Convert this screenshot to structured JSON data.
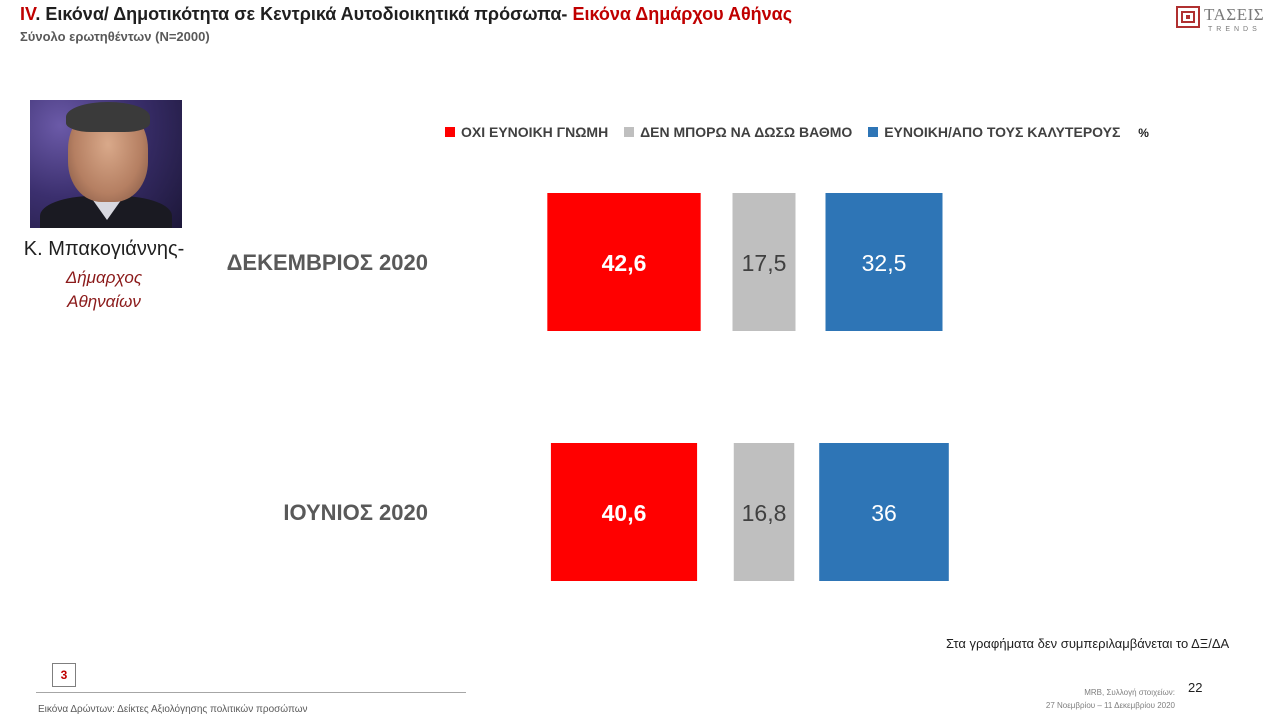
{
  "header": {
    "title_num": "IV",
    "title_main": ". Εικόνα/ Δημοτικότητα σε Κεντρικά Αυτοδιοικητικά πρόσωπα- ",
    "title_accent": "Εικόνα Δημάρχου Αθήνας",
    "subtitle": "Σύνολο ερωτηθέντων (N=2000)"
  },
  "logo": {
    "text": "ΤΑΣΕΙΣ",
    "sub": "TRENDS"
  },
  "person": {
    "name": "Κ. Μπακογιάννης-",
    "role_line1": "Δήμαρχος",
    "role_line2": "Αθηναίων"
  },
  "legend": {
    "unit": "%",
    "items": [
      {
        "label": "ΟΧΙ ΕΥΝΟΙΚΗ ΓΝΩΜΗ",
        "color": "#ff0000"
      },
      {
        "label": "ΔΕΝ ΜΠΟΡΩ ΝΑ ΔΩΣΩ ΒΑΘΜΟ",
        "color": "#bfbfbf"
      },
      {
        "label": "ΕΥΝΟΙΚΗ/ΑΠΟ ΤΟΥΣ ΚΑΛΥΤΕΡΟΥΣ",
        "color": "#2e75b6"
      }
    ]
  },
  "chart_data": {
    "type": "bar",
    "categories": [
      "ΔΕΚΕΜΒΡΙΟΣ 2020",
      "ΙΟΥΝΙΟΣ 2020"
    ],
    "series": [
      {
        "name": "ΟΧΙ ΕΥΝΟΙΚΗ ΓΝΩΜΗ",
        "color": "#ff0000",
        "values": [
          42.6,
          40.6
        ],
        "labels": [
          "42,6",
          "40,6"
        ]
      },
      {
        "name": "ΔΕΝ ΜΠΟΡΩ ΝΑ ΔΩΣΩ ΒΑΘΜΟ",
        "color": "#bfbfbf",
        "values": [
          17.5,
          16.8
        ],
        "labels": [
          "17,5",
          "16,8"
        ]
      },
      {
        "name": "ΕΥΝΟΙΚΗ/ΑΠΟ ΤΟΥΣ ΚΑΛΥΤΕΡΟΥΣ",
        "color": "#2e75b6",
        "values": [
          32.5,
          36
        ],
        "labels": [
          "32,5",
          "36"
        ]
      }
    ],
    "unit": "%",
    "legend_position": "top"
  },
  "footer": {
    "note": "Στα γραφήματα δεν συμπεριλαμβάνεται το ΔΞ/ΔΑ",
    "section_num": "3",
    "text": "Εικόνα Δρώντων: Δείκτες Αξιολόγησης πολιτικών προσώπων",
    "source_line1": "MRB, Συλλογή στοιχείων:",
    "source_line2": "27 Νοεμβρίου –  11 Δεκεμβρίου 2020",
    "page": "22"
  }
}
